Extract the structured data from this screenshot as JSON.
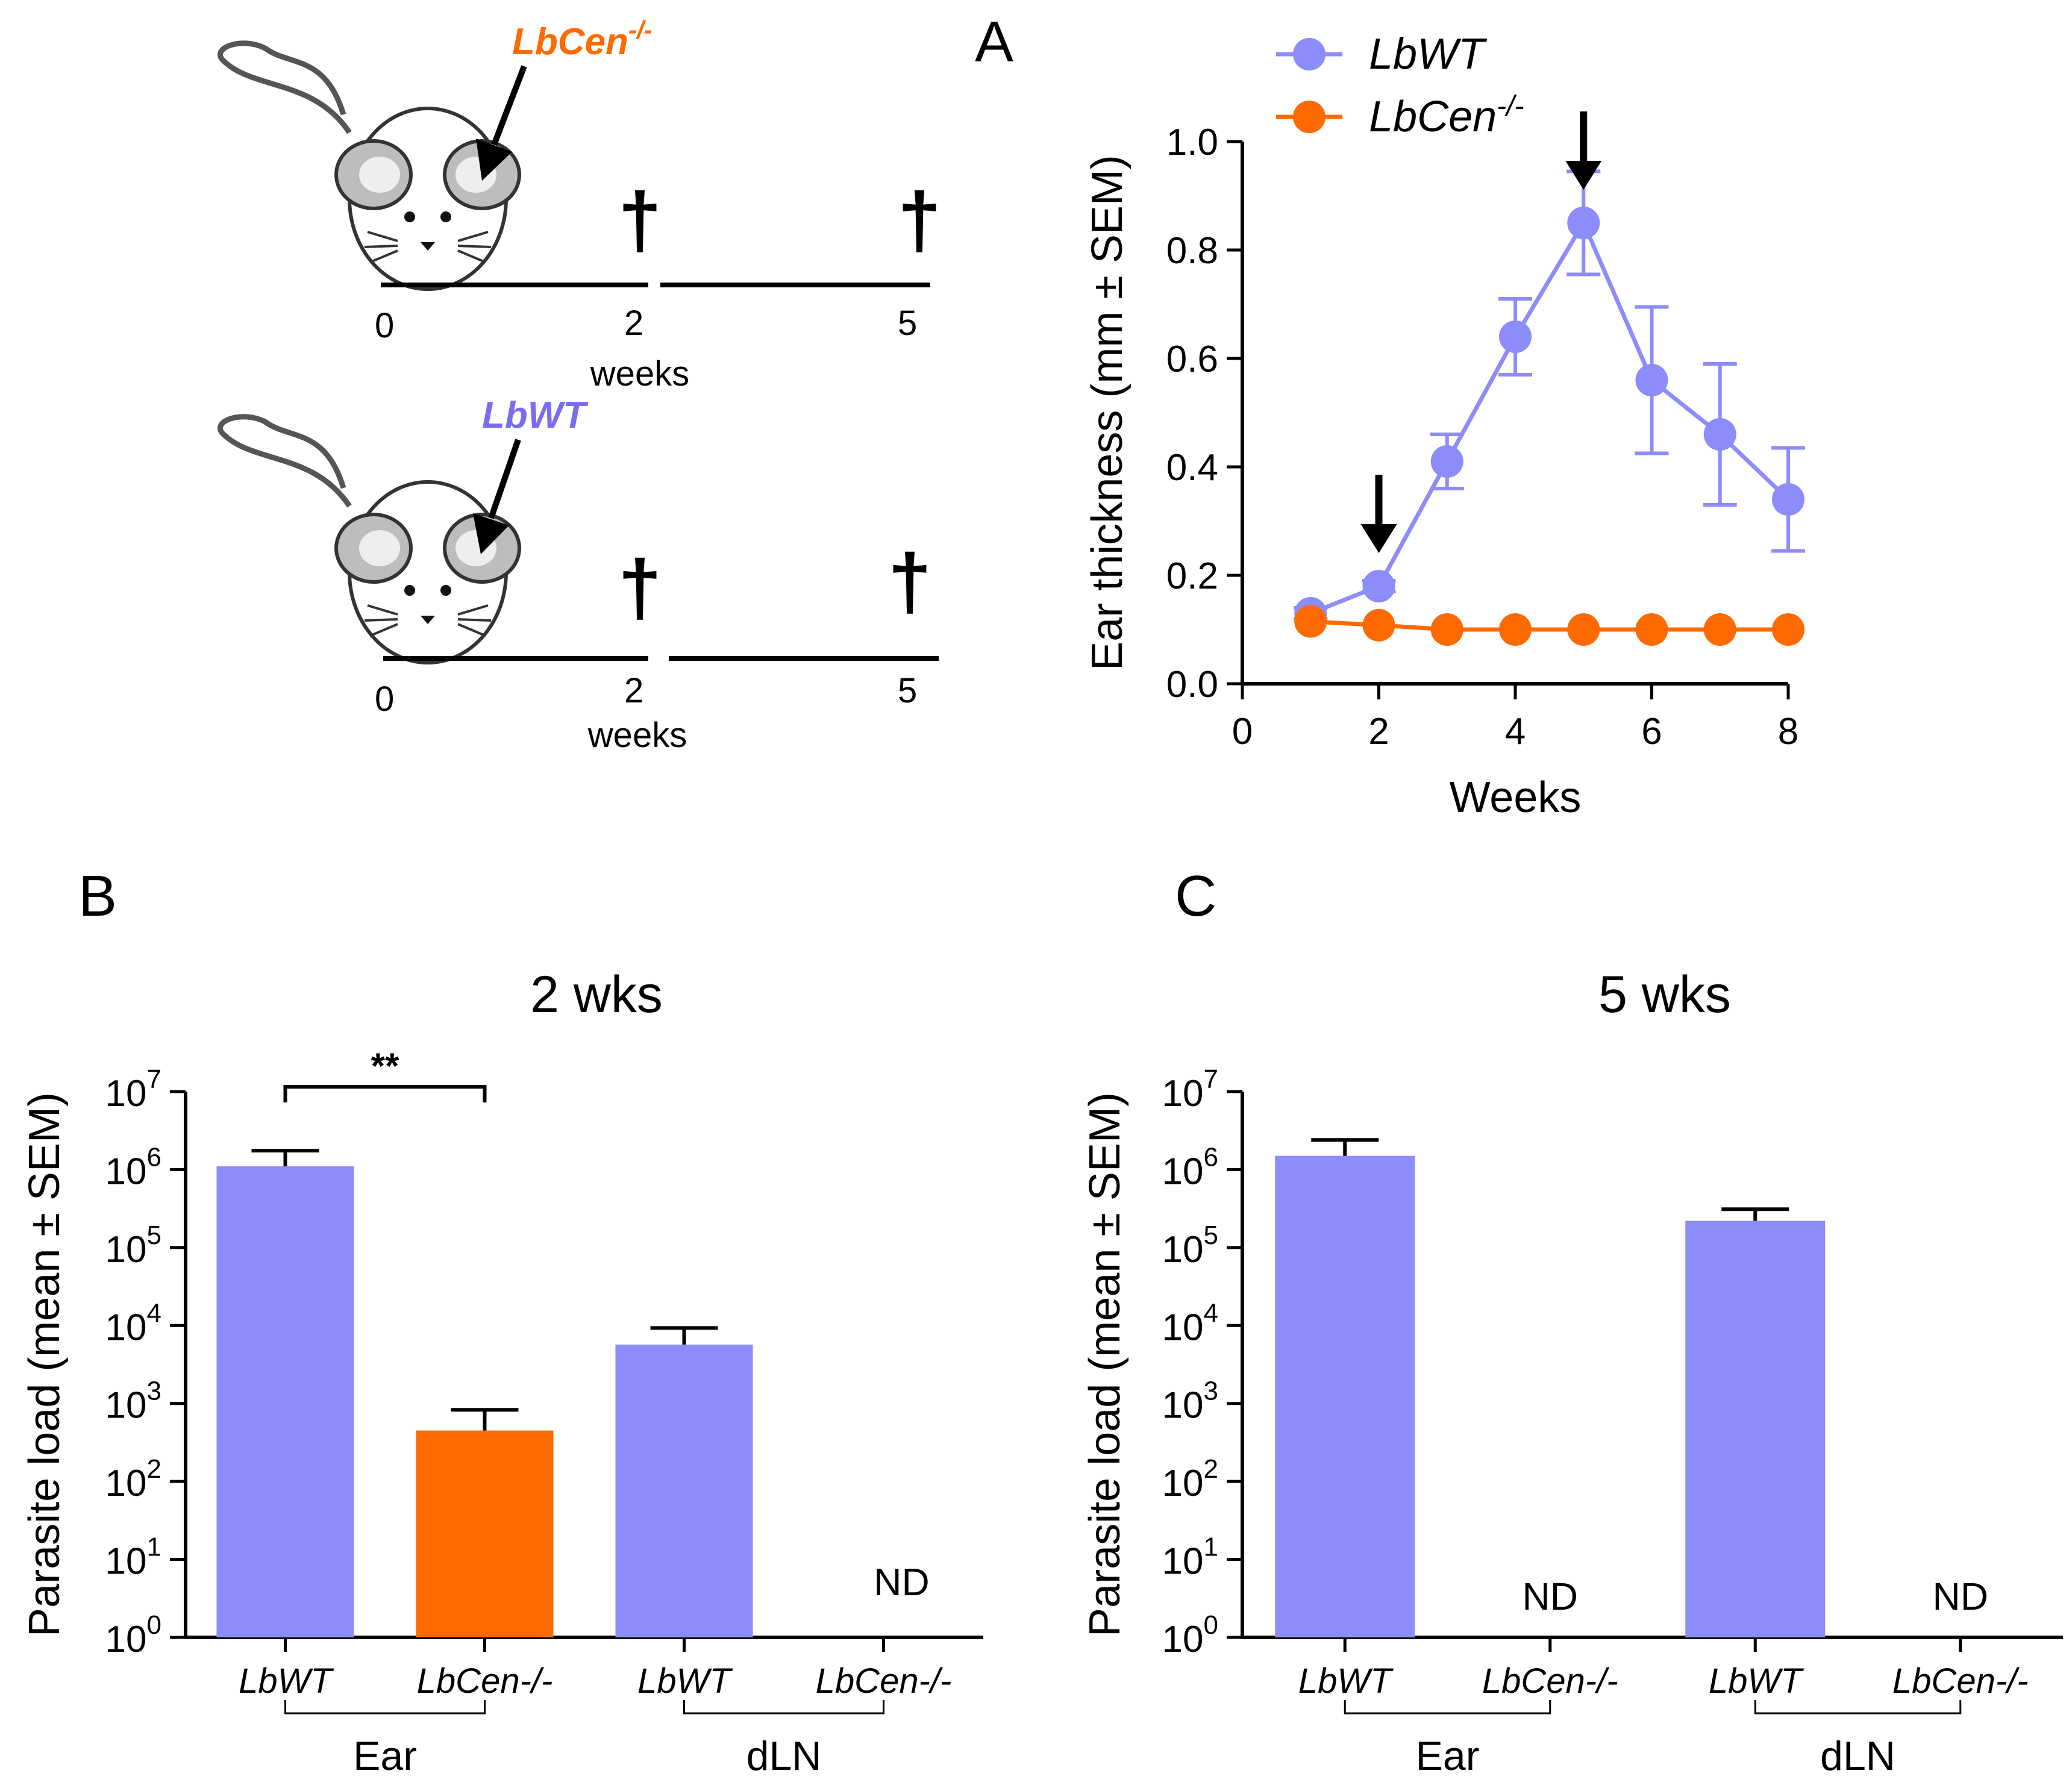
{
  "figure": {
    "panel_a_letter": "A",
    "panel_b_letter": "B",
    "panel_c_letter": "C",
    "colors": {
      "wt": "#8c8cfa",
      "cen": "#ff6a00",
      "wt_strain_label": "#7a6cf0",
      "cen_strain_label": "#ff6a00"
    }
  },
  "schematic": {
    "rows": [
      {
        "strain_main": "LbCen",
        "strain_sup": "-/-",
        "color_key": "cen",
        "tick_labels": [
          "0",
          "2",
          "5"
        ],
        "unit_label": "weeks",
        "dagger": "†"
      },
      {
        "strain_main": "LbWT",
        "strain_sup": "",
        "color_key": "wt",
        "tick_labels": [
          "0",
          "2",
          "5"
        ],
        "unit_label": "weeks",
        "dagger": "†"
      }
    ]
  },
  "chart_data": [
    {
      "id": "A",
      "type": "line",
      "title": "",
      "xlabel": "Weeks",
      "ylabel": "Ear thickness (mm ± SEM)",
      "xlim": [
        0,
        8
      ],
      "ylim": [
        0,
        1.0
      ],
      "xticks": [
        0,
        2,
        4,
        6,
        8
      ],
      "xtick_labels": [
        "0",
        "2",
        "4",
        "6",
        "8"
      ],
      "yticks": [
        0,
        0.2,
        0.4,
        0.6,
        0.8,
        1.0
      ],
      "ytick_labels": [
        "0.0",
        "0.2",
        "0.4",
        "0.6",
        "0.8",
        "1.0"
      ],
      "legend_position": "top-left",
      "series": [
        {
          "name": "LbWT",
          "name_sup": "",
          "color": "#8c8cfa",
          "x": [
            1,
            2,
            3,
            4,
            5,
            6,
            7,
            8
          ],
          "y": [
            0.13,
            0.18,
            0.41,
            0.64,
            0.85,
            0.56,
            0.46,
            0.34
          ],
          "err": [
            0.01,
            0.01,
            0.05,
            0.07,
            0.095,
            0.135,
            0.13,
            0.095
          ]
        },
        {
          "name": "LbCen",
          "name_sup": "-/-",
          "color": "#ff6a00",
          "x": [
            1,
            2,
            3,
            4,
            5,
            6,
            7,
            8
          ],
          "y": [
            0.115,
            0.108,
            0.1,
            0.1,
            0.1,
            0.1,
            0.1,
            0.1
          ],
          "err": [
            0,
            0,
            0,
            0,
            0,
            0,
            0,
            0
          ]
        }
      ],
      "annotations": [
        {
          "type": "arrow-down",
          "x": 2,
          "y": 0.18
        },
        {
          "type": "arrow-down",
          "x": 5,
          "y": 0.85
        }
      ]
    },
    {
      "id": "B",
      "type": "bar",
      "title": "2 wks",
      "xlabel": "",
      "ylabel": "Parasite load (mean ± SEM)",
      "yscale": "log",
      "ylim": [
        1,
        10000000
      ],
      "ytick_exponents": [
        "0",
        "1",
        "2",
        "3",
        "4",
        "5",
        "6",
        "7"
      ],
      "ytick_base": "10",
      "categories": [
        "LbWT",
        "LbCen-/-",
        "LbWT",
        "LbCen-/-"
      ],
      "values": [
        1100000,
        450,
        5700,
        null
      ],
      "err_upper": [
        1750000,
        830,
        9300,
        null
      ],
      "bar_colors": [
        "#8c8cfa",
        "#ff6a00",
        "#8c8cfa",
        null
      ],
      "nd_label": "ND",
      "groups": [
        {
          "label": "Ear",
          "span": [
            0,
            1
          ]
        },
        {
          "label": "dLN",
          "span": [
            2,
            3
          ]
        }
      ],
      "significance": [
        {
          "between": [
            0,
            1
          ],
          "label": "**"
        }
      ]
    },
    {
      "id": "C",
      "type": "bar",
      "title": "5 wks",
      "xlabel": "",
      "ylabel": "Parasite load (mean ± SEM)",
      "yscale": "log",
      "ylim": [
        1,
        10000000
      ],
      "ytick_exponents": [
        "0",
        "1",
        "2",
        "3",
        "4",
        "5",
        "6",
        "7"
      ],
      "ytick_base": "10",
      "categories": [
        "LbWT",
        "LbCen-/-",
        "LbWT",
        "LbCen-/-"
      ],
      "values": [
        1500000,
        null,
        220000,
        null
      ],
      "err_upper": [
        2400000,
        null,
        310000,
        null
      ],
      "bar_colors": [
        "#8c8cfa",
        null,
        "#8c8cfa",
        null
      ],
      "nd_label": "ND",
      "groups": [
        {
          "label": "Ear",
          "span": [
            0,
            1
          ]
        },
        {
          "label": "dLN",
          "span": [
            2,
            3
          ]
        }
      ],
      "significance": []
    }
  ]
}
